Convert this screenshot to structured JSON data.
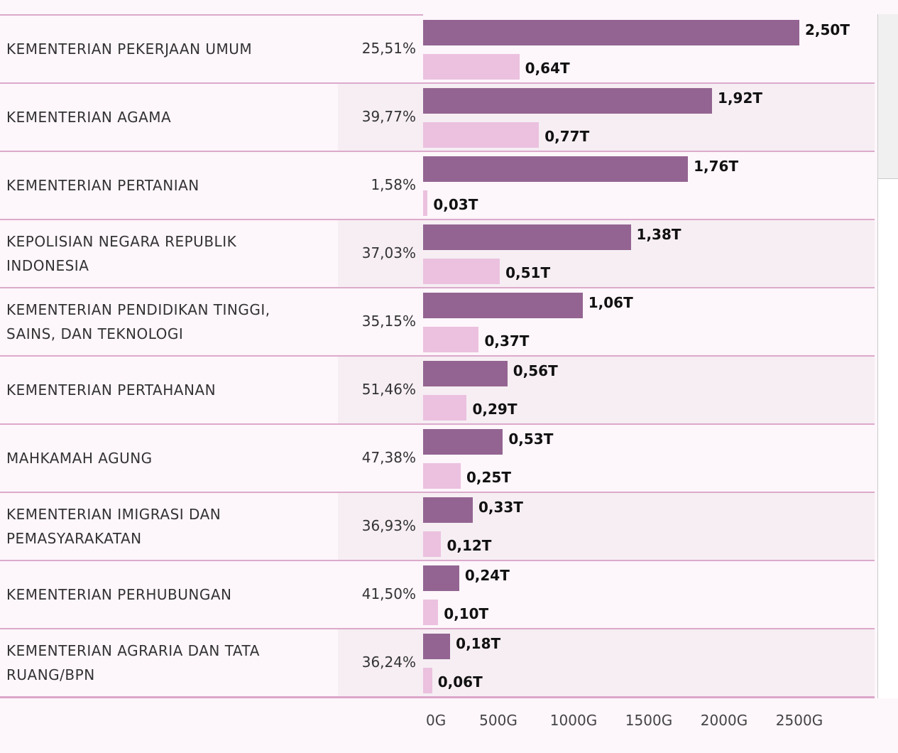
{
  "chart_data": {
    "type": "bar",
    "categories": [
      "KEMENTERIAN PEKERJAAN UMUM",
      "KEMENTERIAN AGAMA",
      "KEMENTERIAN PERTANIAN",
      "KEPOLISIAN NEGARA REPUBLIK INDONESIA",
      "KEMENTERIAN PENDIDIKAN TINGGI, SAINS, DAN TEKNOLOGI",
      "KEMENTERIAN PERTAHANAN",
      "MAHKAMAH AGUNG",
      "KEMENTERIAN IMIGRASI DAN PEMASYARAKATAN",
      "KEMENTERIAN PERHUBUNGAN",
      "KEMENTERIAN AGRARIA DAN TATA RUANG/BPN"
    ],
    "share": [
      "25,51%",
      "39,77%",
      "1,58%",
      "37,03%",
      "35,15%",
      "51,46%",
      "47,38%",
      "36,93%",
      "41,50%",
      "36,24%"
    ],
    "series": [
      {
        "color": "#936491",
        "values": [
          2500,
          1920,
          1760,
          1380,
          1060,
          560,
          530,
          330,
          240,
          180
        ],
        "value_labels": [
          "2,50T",
          "1,92T",
          "1,76T",
          "1,38T",
          "1,06T",
          "0,56T",
          "0,53T",
          "0,33T",
          "0,24T",
          "0,18T"
        ]
      },
      {
        "color": "#ebc1df",
        "values": [
          640,
          770,
          30,
          510,
          370,
          290,
          250,
          120,
          100,
          60
        ],
        "value_labels": [
          "0,64T",
          "0,77T",
          "0,03T",
          "0,51T",
          "0,37T",
          "0,29T",
          "0,25T",
          "0,12T",
          "0,10T",
          "0,06T"
        ]
      }
    ],
    "xlim": [
      0,
      3000
    ],
    "xticks": [
      {
        "value": 0,
        "label": "0G"
      },
      {
        "value": 500,
        "label": "500G"
      },
      {
        "value": 1000,
        "label": "1000G"
      },
      {
        "value": 1500,
        "label": "1500G"
      },
      {
        "value": 2000,
        "label": "2000G"
      },
      {
        "value": 2500,
        "label": "2500G"
      }
    ]
  }
}
